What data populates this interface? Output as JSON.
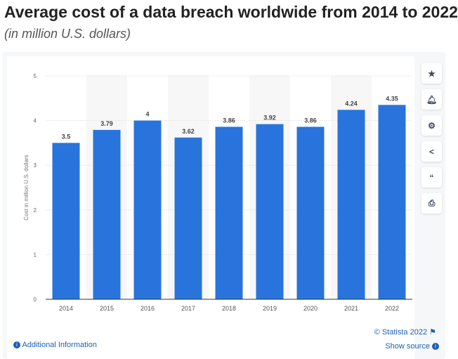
{
  "chart_data": {
    "type": "bar",
    "title": "Average cost of a data breach worldwide from 2014 to 2022",
    "subtitle": "(in million U.S. dollars)",
    "categories": [
      "2014",
      "2015",
      "2016",
      "2017",
      "2018",
      "2019",
      "2020",
      "2021",
      "2022"
    ],
    "values": [
      3.5,
      3.79,
      4,
      3.62,
      3.86,
      3.92,
      3.86,
      4.24,
      4.35
    ],
    "value_labels": [
      "3.5",
      "3.79",
      "4",
      "3.62",
      "3.86",
      "3.92",
      "3.86",
      "4.24",
      "4.35"
    ],
    "xlabel": "",
    "ylabel": "Cost in million U.S. dollars",
    "ylim": [
      0,
      5
    ],
    "yticks": [
      "0",
      "1",
      "2",
      "3",
      "4",
      "5"
    ],
    "grid": true,
    "bar_color": "#2874dc"
  },
  "footer": {
    "additional": "Additional Information",
    "copyright": "© Statista 2022",
    "show_source": "Show source"
  },
  "sidebar": [
    "star-icon",
    "bell-icon",
    "gear-icon",
    "share-icon",
    "quote-icon",
    "print-icon"
  ]
}
